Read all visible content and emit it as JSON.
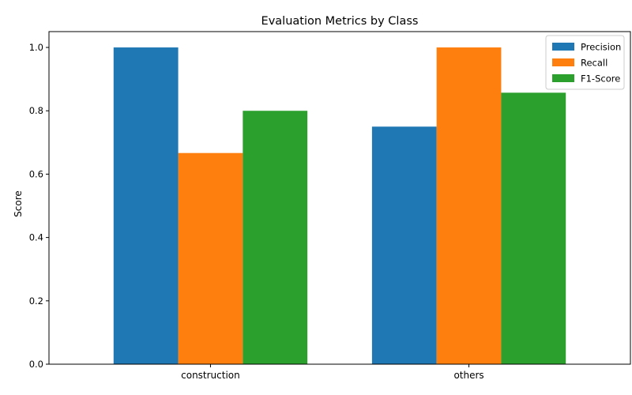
{
  "chart_data": {
    "type": "bar",
    "title": "Evaluation Metrics by Class",
    "xlabel": "",
    "ylabel": "Score",
    "categories": [
      "construction",
      "others"
    ],
    "series": [
      {
        "name": "Precision",
        "values": [
          1.0,
          0.75
        ],
        "color": "#1f77b4"
      },
      {
        "name": "Recall",
        "values": [
          0.6667,
          1.0
        ],
        "color": "#ff7f0e"
      },
      {
        "name": "F1-Score",
        "values": [
          0.8,
          0.8571
        ],
        "color": "#2ca02c"
      }
    ],
    "ylim": [
      0,
      1.05
    ],
    "yticks": [
      0.0,
      0.2,
      0.4,
      0.6,
      0.8,
      1.0
    ],
    "ytick_labels": [
      "0.0",
      "0.2",
      "0.4",
      "0.6",
      "0.8",
      "1.0"
    ],
    "grid": false,
    "legend_position": "top-right"
  }
}
